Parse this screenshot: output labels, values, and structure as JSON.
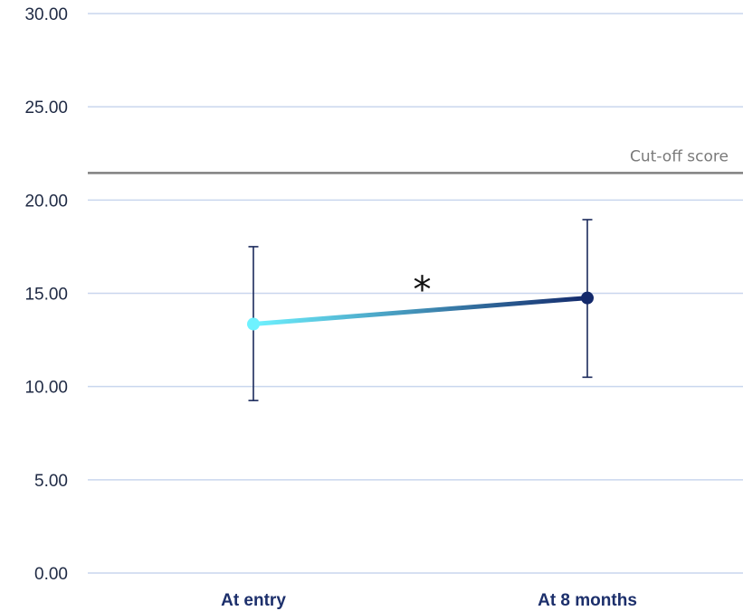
{
  "chart_data": {
    "type": "line",
    "categories": [
      "At entry",
      "At 8 months"
    ],
    "series": [
      {
        "values": [
          13.35,
          14.75
        ],
        "error_low": [
          9.25,
          10.5
        ],
        "error_high": [
          17.5,
          18.95
        ],
        "color_start": "#6ef2ff",
        "color_end": "#13296b"
      }
    ],
    "yticks": [
      "0.00",
      "5.00",
      "10.00",
      "15.00",
      "20.00",
      "25.00",
      "30.00"
    ],
    "ylim": [
      0,
      30
    ],
    "grid": true,
    "reference_line": {
      "value": 21.45,
      "label": "Cut-off score",
      "color": "#808080"
    },
    "annotation": {
      "text": "*",
      "x_between": [
        0,
        1
      ],
      "y": 15.4
    },
    "colors": {
      "grid": "#c9d6ee",
      "error_bar": "#1b2a5c",
      "tick_text": "#1f2a44",
      "category_text": "#1c2f6b"
    }
  }
}
